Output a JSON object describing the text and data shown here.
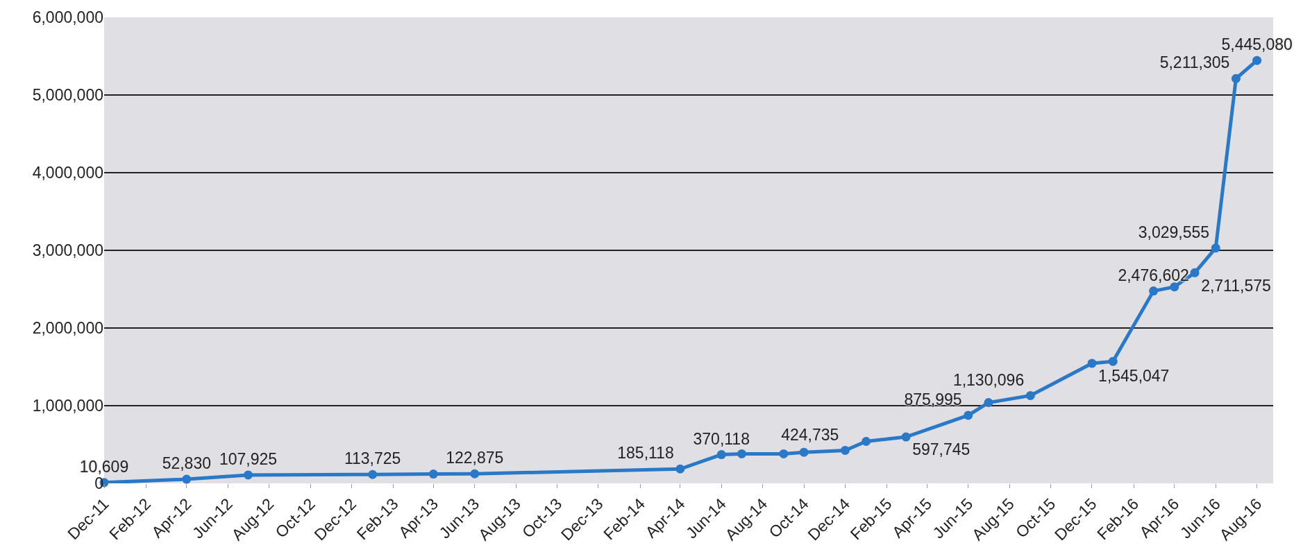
{
  "chart_data": {
    "type": "line",
    "x": [
      "2011-12",
      "2012-04",
      "2012-07",
      "2013-01",
      "2013-04",
      "2013-06",
      "2014-04",
      "2014-06",
      "2014-07",
      "2014-09",
      "2014-10",
      "2014-12",
      "2015-01",
      "2015-03",
      "2015-06",
      "2015-07",
      "2015-09",
      "2015-12",
      "2016-01",
      "2016-03",
      "2016-04",
      "2016-05",
      "2016-06",
      "2016-07",
      "2016-08"
    ],
    "values": [
      10609,
      52830,
      107925,
      113725,
      120000,
      122875,
      185118,
      370118,
      380000,
      380000,
      400000,
      424735,
      540000,
      597745,
      875995,
      1040000,
      1130096,
      1545047,
      1570000,
      2476602,
      2530000,
      2711575,
      3029555,
      5211305,
      5445080
    ],
    "value_labels": [
      "10,609",
      "52,830",
      "107,925",
      "113,725",
      null,
      "122,875",
      "185,118",
      "370,118",
      null,
      null,
      null,
      "424,735",
      null,
      "597,745",
      "875,995",
      null,
      "1,130,096",
      "1,545,047",
      null,
      "2,476,602",
      null,
      "2,711,575",
      "3,029,555",
      "5,211,305",
      "5,445,080"
    ],
    "color": "#2a78c8",
    "marker": "circle",
    "line_style": "solid",
    "grid": "y",
    "xlim": [
      "2011-12-01",
      "2016-08-25"
    ],
    "xticks": [
      {
        "value": "2011-12",
        "label": "Dec-11"
      },
      {
        "value": "2012-02",
        "label": "Feb-12"
      },
      {
        "value": "2012-04",
        "label": "Apr-12"
      },
      {
        "value": "2012-06",
        "label": "Jun-12"
      },
      {
        "value": "2012-08",
        "label": "Aug-12"
      },
      {
        "value": "2012-10",
        "label": "Oct-12"
      },
      {
        "value": "2012-12",
        "label": "Dec-12"
      },
      {
        "value": "2013-02",
        "label": "Feb-13"
      },
      {
        "value": "2013-04",
        "label": "Apr-13"
      },
      {
        "value": "2013-06",
        "label": "Jun-13"
      },
      {
        "value": "2013-08",
        "label": "Aug-13"
      },
      {
        "value": "2013-10",
        "label": "Oct-13"
      },
      {
        "value": "2013-12",
        "label": "Dec-13"
      },
      {
        "value": "2014-02",
        "label": "Feb-14"
      },
      {
        "value": "2014-04",
        "label": "Apr-14"
      },
      {
        "value": "2014-06",
        "label": "Jun-14"
      },
      {
        "value": "2014-08",
        "label": "Aug-14"
      },
      {
        "value": "2014-10",
        "label": "Oct-14"
      },
      {
        "value": "2014-12",
        "label": "Dec-14"
      },
      {
        "value": "2015-02",
        "label": "Feb-15"
      },
      {
        "value": "2015-04",
        "label": "Apr-15"
      },
      {
        "value": "2015-06",
        "label": "Jun-15"
      },
      {
        "value": "2015-08",
        "label": "Aug-15"
      },
      {
        "value": "2015-10",
        "label": "Oct-15"
      },
      {
        "value": "2015-12",
        "label": "Dec-15"
      },
      {
        "value": "2016-02",
        "label": "Feb-16"
      },
      {
        "value": "2016-04",
        "label": "Apr-16"
      },
      {
        "value": "2016-06",
        "label": "Jun-16"
      },
      {
        "value": "2016-08",
        "label": "Aug-16"
      }
    ],
    "ylim": [
      0,
      6000000
    ],
    "yticks": [
      {
        "value": 0,
        "label": "0"
      },
      {
        "value": 1000000,
        "label": "1,000,000"
      },
      {
        "value": 2000000,
        "label": "2,000,000"
      },
      {
        "value": 3000000,
        "label": "3,000,000"
      },
      {
        "value": 4000000,
        "label": "4,000,000"
      },
      {
        "value": 5000000,
        "label": "5,000,000"
      },
      {
        "value": 6000000,
        "label": "6,000,000"
      }
    ]
  }
}
